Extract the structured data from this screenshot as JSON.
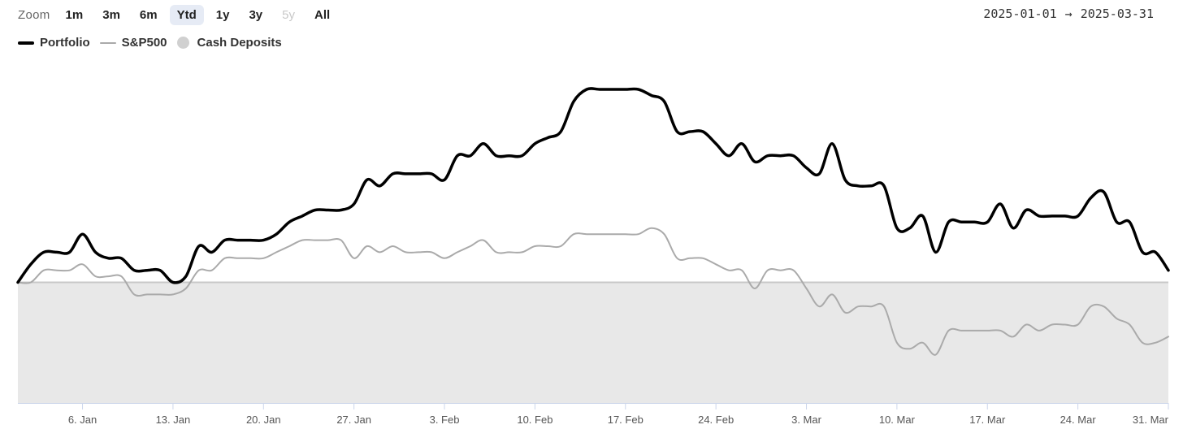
{
  "toolbar": {
    "zoom_label": "Zoom",
    "buttons": [
      {
        "label": "1m",
        "state": "normal"
      },
      {
        "label": "3m",
        "state": "normal"
      },
      {
        "label": "6m",
        "state": "normal"
      },
      {
        "label": "Ytd",
        "state": "active"
      },
      {
        "label": "1y",
        "state": "normal"
      },
      {
        "label": "3y",
        "state": "normal"
      },
      {
        "label": "5y",
        "state": "disabled"
      },
      {
        "label": "All",
        "state": "normal"
      }
    ]
  },
  "date_range": {
    "from": "2025-01-01",
    "arrow": "→",
    "to": "2025-03-31"
  },
  "legend": [
    {
      "name": "Portfolio",
      "symbol": "line",
      "color": "#000000"
    },
    {
      "name": "S&P500",
      "symbol": "line",
      "color": "#aaaaaa"
    },
    {
      "name": "Cash Deposits",
      "symbol": "dot",
      "color": "#d0d0d0"
    }
  ],
  "chart_data": {
    "type": "line",
    "x_range": [
      "2025-01-01",
      "2025-03-31"
    ],
    "x_tick_labels": [
      {
        "date": "2025-01-06",
        "label": "6. Jan"
      },
      {
        "date": "2025-01-13",
        "label": "13. Jan"
      },
      {
        "date": "2025-01-20",
        "label": "20. Jan"
      },
      {
        "date": "2025-01-27",
        "label": "27. Jan"
      },
      {
        "date": "2025-02-03",
        "label": "3. Feb"
      },
      {
        "date": "2025-02-10",
        "label": "10. Feb"
      },
      {
        "date": "2025-02-17",
        "label": "17. Feb"
      },
      {
        "date": "2025-02-24",
        "label": "24. Feb"
      },
      {
        "date": "2025-03-03",
        "label": "3. Mar"
      },
      {
        "date": "2025-03-10",
        "label": "10. Mar"
      },
      {
        "date": "2025-03-17",
        "label": "17. Mar"
      },
      {
        "date": "2025-03-24",
        "label": "24. Mar"
      },
      {
        "date": "2025-03-31",
        "label": "31. Mar"
      }
    ],
    "y_axis_labels": "none",
    "y_range": [
      -2.0,
      3.2
    ],
    "baseline": 0,
    "area_series": {
      "name": "Cash Deposits",
      "value": 0,
      "floor": -2.0,
      "color": "#e8e8e8"
    },
    "series": [
      {
        "name": "Portfolio",
        "color": "#000000",
        "points": [
          [
            "2025-01-01",
            0.0
          ],
          [
            "2025-01-02",
            0.3
          ],
          [
            "2025-01-03",
            0.5
          ],
          [
            "2025-01-04",
            0.5
          ],
          [
            "2025-01-05",
            0.5
          ],
          [
            "2025-01-06",
            0.8
          ],
          [
            "2025-01-07",
            0.5
          ],
          [
            "2025-01-08",
            0.4
          ],
          [
            "2025-01-09",
            0.4
          ],
          [
            "2025-01-10",
            0.2
          ],
          [
            "2025-01-11",
            0.2
          ],
          [
            "2025-01-12",
            0.2
          ],
          [
            "2025-01-13",
            0.0
          ],
          [
            "2025-01-14",
            0.1
          ],
          [
            "2025-01-15",
            0.6
          ],
          [
            "2025-01-16",
            0.5
          ],
          [
            "2025-01-17",
            0.7
          ],
          [
            "2025-01-18",
            0.7
          ],
          [
            "2025-01-19",
            0.7
          ],
          [
            "2025-01-20",
            0.7
          ],
          [
            "2025-01-21",
            0.8
          ],
          [
            "2025-01-22",
            1.0
          ],
          [
            "2025-01-23",
            1.1
          ],
          [
            "2025-01-24",
            1.2
          ],
          [
            "2025-01-25",
            1.2
          ],
          [
            "2025-01-26",
            1.2
          ],
          [
            "2025-01-27",
            1.3
          ],
          [
            "2025-01-28",
            1.7
          ],
          [
            "2025-01-29",
            1.6
          ],
          [
            "2025-01-30",
            1.8
          ],
          [
            "2025-01-31",
            1.8
          ],
          [
            "2025-02-01",
            1.8
          ],
          [
            "2025-02-02",
            1.8
          ],
          [
            "2025-02-03",
            1.7
          ],
          [
            "2025-02-04",
            2.1
          ],
          [
            "2025-02-05",
            2.1
          ],
          [
            "2025-02-06",
            2.3
          ],
          [
            "2025-02-07",
            2.1
          ],
          [
            "2025-02-08",
            2.1
          ],
          [
            "2025-02-09",
            2.1
          ],
          [
            "2025-02-10",
            2.3
          ],
          [
            "2025-02-11",
            2.4
          ],
          [
            "2025-02-12",
            2.5
          ],
          [
            "2025-02-13",
            3.0
          ],
          [
            "2025-02-14",
            3.2
          ],
          [
            "2025-02-15",
            3.2
          ],
          [
            "2025-02-16",
            3.2
          ],
          [
            "2025-02-17",
            3.2
          ],
          [
            "2025-02-18",
            3.2
          ],
          [
            "2025-02-19",
            3.1
          ],
          [
            "2025-02-20",
            3.0
          ],
          [
            "2025-02-21",
            2.5
          ],
          [
            "2025-02-22",
            2.5
          ],
          [
            "2025-02-23",
            2.5
          ],
          [
            "2025-02-24",
            2.3
          ],
          [
            "2025-02-25",
            2.1
          ],
          [
            "2025-02-26",
            2.3
          ],
          [
            "2025-02-27",
            2.0
          ],
          [
            "2025-02-28",
            2.1
          ],
          [
            "2025-03-01",
            2.1
          ],
          [
            "2025-03-02",
            2.1
          ],
          [
            "2025-03-03",
            1.9
          ],
          [
            "2025-03-04",
            1.8
          ],
          [
            "2025-03-05",
            2.3
          ],
          [
            "2025-03-06",
            1.7
          ],
          [
            "2025-03-07",
            1.6
          ],
          [
            "2025-03-08",
            1.6
          ],
          [
            "2025-03-09",
            1.6
          ],
          [
            "2025-03-10",
            0.9
          ],
          [
            "2025-03-11",
            0.9
          ],
          [
            "2025-03-12",
            1.1
          ],
          [
            "2025-03-13",
            0.5
          ],
          [
            "2025-03-14",
            1.0
          ],
          [
            "2025-03-15",
            1.0
          ],
          [
            "2025-03-16",
            1.0
          ],
          [
            "2025-03-17",
            1.0
          ],
          [
            "2025-03-18",
            1.3
          ],
          [
            "2025-03-19",
            0.9
          ],
          [
            "2025-03-20",
            1.2
          ],
          [
            "2025-03-21",
            1.1
          ],
          [
            "2025-03-22",
            1.1
          ],
          [
            "2025-03-23",
            1.1
          ],
          [
            "2025-03-24",
            1.1
          ],
          [
            "2025-03-25",
            1.4
          ],
          [
            "2025-03-26",
            1.5
          ],
          [
            "2025-03-27",
            1.0
          ],
          [
            "2025-03-28",
            1.0
          ],
          [
            "2025-03-29",
            0.5
          ],
          [
            "2025-03-30",
            0.5
          ],
          [
            "2025-03-31",
            0.2
          ]
        ]
      },
      {
        "name": "S&P500",
        "color": "#aaaaaa",
        "points": [
          [
            "2025-01-01",
            0.0
          ],
          [
            "2025-01-02",
            0.0
          ],
          [
            "2025-01-03",
            0.2
          ],
          [
            "2025-01-04",
            0.2
          ],
          [
            "2025-01-05",
            0.2
          ],
          [
            "2025-01-06",
            0.3
          ],
          [
            "2025-01-07",
            0.1
          ],
          [
            "2025-01-08",
            0.1
          ],
          [
            "2025-01-09",
            0.1
          ],
          [
            "2025-01-10",
            -0.2
          ],
          [
            "2025-01-11",
            -0.2
          ],
          [
            "2025-01-12",
            -0.2
          ],
          [
            "2025-01-13",
            -0.2
          ],
          [
            "2025-01-14",
            -0.1
          ],
          [
            "2025-01-15",
            0.2
          ],
          [
            "2025-01-16",
            0.2
          ],
          [
            "2025-01-17",
            0.4
          ],
          [
            "2025-01-18",
            0.4
          ],
          [
            "2025-01-19",
            0.4
          ],
          [
            "2025-01-20",
            0.4
          ],
          [
            "2025-01-21",
            0.5
          ],
          [
            "2025-01-22",
            0.6
          ],
          [
            "2025-01-23",
            0.7
          ],
          [
            "2025-01-24",
            0.7
          ],
          [
            "2025-01-25",
            0.7
          ],
          [
            "2025-01-26",
            0.7
          ],
          [
            "2025-01-27",
            0.4
          ],
          [
            "2025-01-28",
            0.6
          ],
          [
            "2025-01-29",
            0.5
          ],
          [
            "2025-01-30",
            0.6
          ],
          [
            "2025-01-31",
            0.5
          ],
          [
            "2025-02-01",
            0.5
          ],
          [
            "2025-02-02",
            0.5
          ],
          [
            "2025-02-03",
            0.4
          ],
          [
            "2025-02-04",
            0.5
          ],
          [
            "2025-02-05",
            0.6
          ],
          [
            "2025-02-06",
            0.7
          ],
          [
            "2025-02-07",
            0.5
          ],
          [
            "2025-02-08",
            0.5
          ],
          [
            "2025-02-09",
            0.5
          ],
          [
            "2025-02-10",
            0.6
          ],
          [
            "2025-02-11",
            0.6
          ],
          [
            "2025-02-12",
            0.6
          ],
          [
            "2025-02-13",
            0.8
          ],
          [
            "2025-02-14",
            0.8
          ],
          [
            "2025-02-15",
            0.8
          ],
          [
            "2025-02-16",
            0.8
          ],
          [
            "2025-02-17",
            0.8
          ],
          [
            "2025-02-18",
            0.8
          ],
          [
            "2025-02-19",
            0.9
          ],
          [
            "2025-02-20",
            0.8
          ],
          [
            "2025-02-21",
            0.4
          ],
          [
            "2025-02-22",
            0.4
          ],
          [
            "2025-02-23",
            0.4
          ],
          [
            "2025-02-24",
            0.3
          ],
          [
            "2025-02-25",
            0.2
          ],
          [
            "2025-02-26",
            0.2
          ],
          [
            "2025-02-27",
            -0.1
          ],
          [
            "2025-02-28",
            0.2
          ],
          [
            "2025-03-01",
            0.2
          ],
          [
            "2025-03-02",
            0.2
          ],
          [
            "2025-03-03",
            -0.1
          ],
          [
            "2025-03-04",
            -0.4
          ],
          [
            "2025-03-05",
            -0.2
          ],
          [
            "2025-03-06",
            -0.5
          ],
          [
            "2025-03-07",
            -0.4
          ],
          [
            "2025-03-08",
            -0.4
          ],
          [
            "2025-03-09",
            -0.4
          ],
          [
            "2025-03-10",
            -1.0
          ],
          [
            "2025-03-11",
            -1.1
          ],
          [
            "2025-03-12",
            -1.0
          ],
          [
            "2025-03-13",
            -1.2
          ],
          [
            "2025-03-14",
            -0.8
          ],
          [
            "2025-03-15",
            -0.8
          ],
          [
            "2025-03-16",
            -0.8
          ],
          [
            "2025-03-17",
            -0.8
          ],
          [
            "2025-03-18",
            -0.8
          ],
          [
            "2025-03-19",
            -0.9
          ],
          [
            "2025-03-20",
            -0.7
          ],
          [
            "2025-03-21",
            -0.8
          ],
          [
            "2025-03-22",
            -0.7
          ],
          [
            "2025-03-23",
            -0.7
          ],
          [
            "2025-03-24",
            -0.7
          ],
          [
            "2025-03-25",
            -0.4
          ],
          [
            "2025-03-26",
            -0.4
          ],
          [
            "2025-03-27",
            -0.6
          ],
          [
            "2025-03-28",
            -0.7
          ],
          [
            "2025-03-29",
            -1.0
          ],
          [
            "2025-03-30",
            -1.0
          ],
          [
            "2025-03-31",
            -0.9
          ]
        ]
      }
    ]
  }
}
